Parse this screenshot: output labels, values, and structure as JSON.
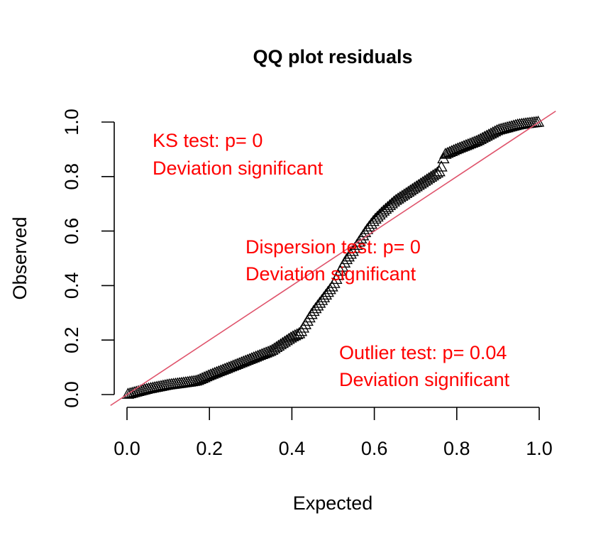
{
  "chart_data": {
    "type": "scatter",
    "title": "QQ plot residuals",
    "xlabel": "Expected",
    "ylabel": "Observed",
    "xlim": [
      0,
      1
    ],
    "ylim": [
      0,
      1
    ],
    "x_ticks": [
      "0.0",
      "0.2",
      "0.4",
      "0.6",
      "0.8",
      "1.0"
    ],
    "y_ticks": [
      "0.0",
      "0.2",
      "0.4",
      "0.6",
      "0.8",
      "1.0"
    ],
    "marker": "open-triangle",
    "point_color": "#000000",
    "reference_line": {
      "type": "identity",
      "color": "#df536b"
    },
    "annotation_color": "#ff0000",
    "annotations": [
      {
        "line1": "KS test: p= 0",
        "line2": "Deviation  significant"
      },
      {
        "line1": "Dispersion test: p= 0",
        "line2": "Deviation  significant"
      },
      {
        "line1": "Outlier test: p= 0.04",
        "line2": "Deviation  significant"
      }
    ],
    "curve": {
      "x": [
        0.0,
        0.05,
        0.1,
        0.15,
        0.17,
        0.2,
        0.25,
        0.3,
        0.35,
        0.37,
        0.4,
        0.42,
        0.45,
        0.48,
        0.5,
        0.53,
        0.55,
        0.58,
        0.6,
        0.62,
        0.65,
        0.68,
        0.7,
        0.73,
        0.75,
        0.76,
        0.77,
        0.8,
        0.85,
        0.9,
        0.95,
        1.0
      ],
      "y": [
        0.0,
        0.02,
        0.035,
        0.045,
        0.05,
        0.07,
        0.1,
        0.13,
        0.16,
        0.18,
        0.21,
        0.225,
        0.3,
        0.36,
        0.4,
        0.49,
        0.53,
        0.6,
        0.64,
        0.67,
        0.71,
        0.74,
        0.76,
        0.79,
        0.81,
        0.82,
        0.88,
        0.9,
        0.93,
        0.97,
        0.99,
        1.0
      ]
    },
    "n_points": 200
  }
}
